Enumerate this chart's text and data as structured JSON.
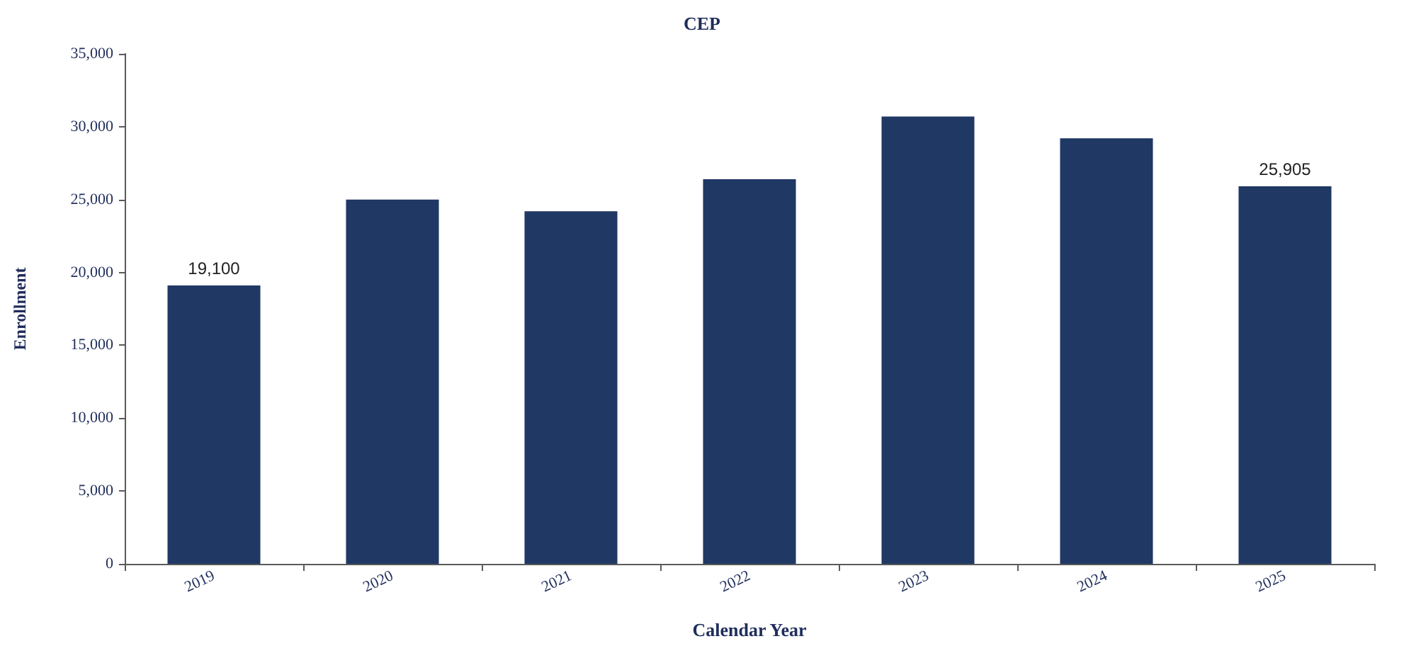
{
  "chart_data": {
    "type": "bar",
    "title": "CEP",
    "xlabel": "Calendar Year",
    "ylabel": "Enrollment",
    "categories": [
      "2019",
      "2020",
      "2021",
      "2022",
      "2023",
      "2024",
      "2025"
    ],
    "values": [
      19100,
      25000,
      24200,
      26400,
      30700,
      29200,
      25905
    ],
    "value_labels": [
      "19,100",
      null,
      null,
      null,
      null,
      null,
      "25,905"
    ],
    "color": "#1f3864",
    "ylim": [
      0,
      35000
    ],
    "yticks": [
      0,
      {
        "value": 5000,
        "label": "5,000"
      },
      {
        "value": 10000,
        "label": "10,000"
      },
      {
        "value": 15000,
        "label": "15,000"
      },
      {
        "value": 20000,
        "label": "20,000"
      },
      {
        "value": 25000,
        "label": "25,000"
      },
      {
        "value": 30000,
        "label": "30,000"
      },
      {
        "value": 35000,
        "label": "35,000"
      }
    ],
    "grid": false
  }
}
